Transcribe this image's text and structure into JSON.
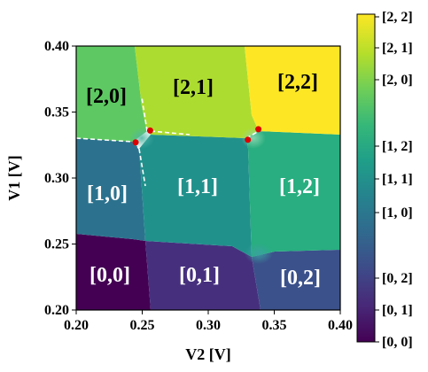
{
  "chart_data": {
    "type": "heatmap",
    "title": "",
    "xlabel": "V2 [V]",
    "ylabel": "V1 [V]",
    "xlim": [
      0.2,
      0.4
    ],
    "ylim": [
      0.2,
      0.4
    ],
    "x_ticks": [
      0.2,
      0.25,
      0.3,
      0.35,
      0.4
    ],
    "x_tick_labels": [
      "0.20",
      "0.25",
      "0.30",
      "0.35",
      "0.40"
    ],
    "y_ticks": [
      0.2,
      0.25,
      0.3,
      0.35,
      0.4
    ],
    "y_tick_labels": [
      "0.20",
      "0.25",
      "0.30",
      "0.35",
      "0.40"
    ],
    "colormap": "viridis",
    "regions": [
      {
        "label": "[0,0]",
        "state": [
          0,
          0
        ],
        "color": "#440154",
        "text_color": "#ffffff"
      },
      {
        "label": "[0,1]",
        "state": [
          0,
          1
        ],
        "color": "#46307e",
        "text_color": "#ffffff"
      },
      {
        "label": "[0,2]",
        "state": [
          0,
          2
        ],
        "color": "#3b518b",
        "text_color": "#ffffff"
      },
      {
        "label": "[1,0]",
        "state": [
          1,
          0
        ],
        "color": "#2c728e",
        "text_color": "#ffffff"
      },
      {
        "label": "[1,1]",
        "state": [
          1,
          1
        ],
        "color": "#21918c",
        "text_color": "#ffffff"
      },
      {
        "label": "[1,2]",
        "state": [
          1,
          2
        ],
        "color": "#28ae80",
        "text_color": "#ffffff"
      },
      {
        "label": "[2,0]",
        "state": [
          2,
          0
        ],
        "color": "#5ec962",
        "text_color": "#000000"
      },
      {
        "label": "[2,1]",
        "state": [
          2,
          1
        ],
        "color": "#addc30",
        "text_color": "#000000"
      },
      {
        "label": "[2,2]",
        "state": [
          2,
          2
        ],
        "color": "#fde725",
        "text_color": "#000000"
      }
    ],
    "colorbar": {
      "tick_labels": [
        "[2, 2]",
        "[2, 1]",
        "[2, 0]",
        "[1, 2]",
        "[1, 1]",
        "[1, 0]",
        "[0, 2]",
        "[0, 1]",
        "[0, 0]"
      ]
    },
    "triple_points": [
      {
        "x": 0.245,
        "y": 0.327
      },
      {
        "x": 0.256,
        "y": 0.336
      },
      {
        "x": 0.33,
        "y": 0.329
      },
      {
        "x": 0.338,
        "y": 0.337
      }
    ],
    "boundary_lines_dashed_color": "#ffffff",
    "triple_point_color": "#dd0000"
  }
}
